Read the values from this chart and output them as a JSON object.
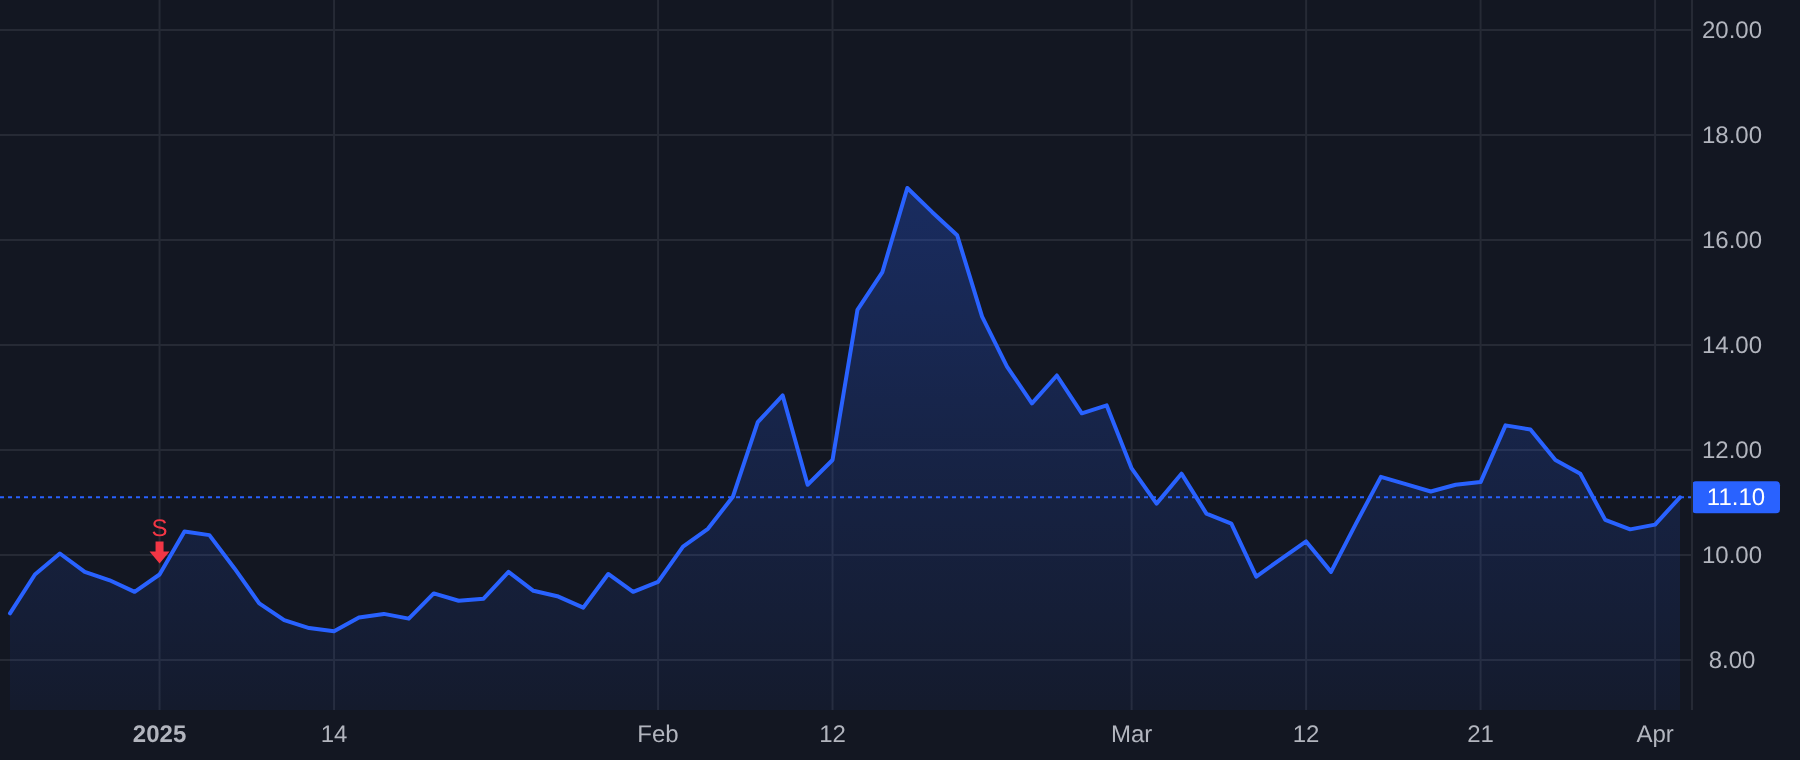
{
  "chart_data": {
    "type": "area",
    "categories": [
      null,
      null,
      null,
      null,
      null,
      null,
      "2025",
      null,
      null,
      null,
      null,
      null,
      null,
      "14",
      null,
      null,
      null,
      null,
      null,
      null,
      null,
      null,
      null,
      null,
      null,
      null,
      "Feb",
      null,
      null,
      null,
      null,
      null,
      null,
      "12",
      null,
      null,
      null,
      null,
      null,
      null,
      null,
      null,
      null,
      null,
      null,
      "Mar",
      null,
      null,
      null,
      null,
      null,
      null,
      "12",
      null,
      null,
      null,
      null,
      null,
      null,
      "21",
      null,
      null,
      null,
      null,
      null,
      null,
      "Apr",
      null
    ],
    "series": [
      {
        "color": "#2962ff",
        "values": [
          8.89,
          9.63,
          10.03,
          9.68,
          9.52,
          9.3,
          9.63,
          10.45,
          10.38,
          9.75,
          9.08,
          8.76,
          8.61,
          8.55,
          8.81,
          8.88,
          8.79,
          9.27,
          9.13,
          9.17,
          9.68,
          9.32,
          9.21,
          9.0,
          9.64,
          9.3,
          9.49,
          10.16,
          10.5,
          11.11,
          12.53,
          13.04,
          11.34,
          11.81,
          14.67,
          15.39,
          16.99,
          16.53,
          16.09,
          14.54,
          13.59,
          12.89,
          13.42,
          12.7,
          12.85,
          11.65,
          10.98,
          11.55,
          10.79,
          10.6,
          9.59,
          9.93,
          10.26,
          9.68,
          10.6,
          11.49,
          11.35,
          11.21,
          11.34,
          11.39,
          12.47,
          12.39,
          11.81,
          11.55,
          10.67,
          10.49,
          10.58,
          11.1
        ]
      }
    ],
    "ylim": [
      7.05,
      20.57
    ],
    "yticks": [
      {
        "value": 8,
        "label": "8.00"
      },
      {
        "value": 10,
        "label": "10.00"
      },
      {
        "value": 12,
        "label": "12.00"
      },
      {
        "value": 14,
        "label": "14.00"
      },
      {
        "value": 16,
        "label": "16.00"
      },
      {
        "value": 18,
        "label": "18.00"
      },
      {
        "value": 20,
        "label": "20.00"
      }
    ],
    "ref_lines": [
      {
        "axis": "y",
        "value": 11.1,
        "label": "11.10",
        "color": "#2962ff",
        "line_style": "dotted"
      }
    ],
    "annotations": [
      {
        "text": "S",
        "x": "2025",
        "y": 9.8
      }
    ],
    "grid": true
  }
}
